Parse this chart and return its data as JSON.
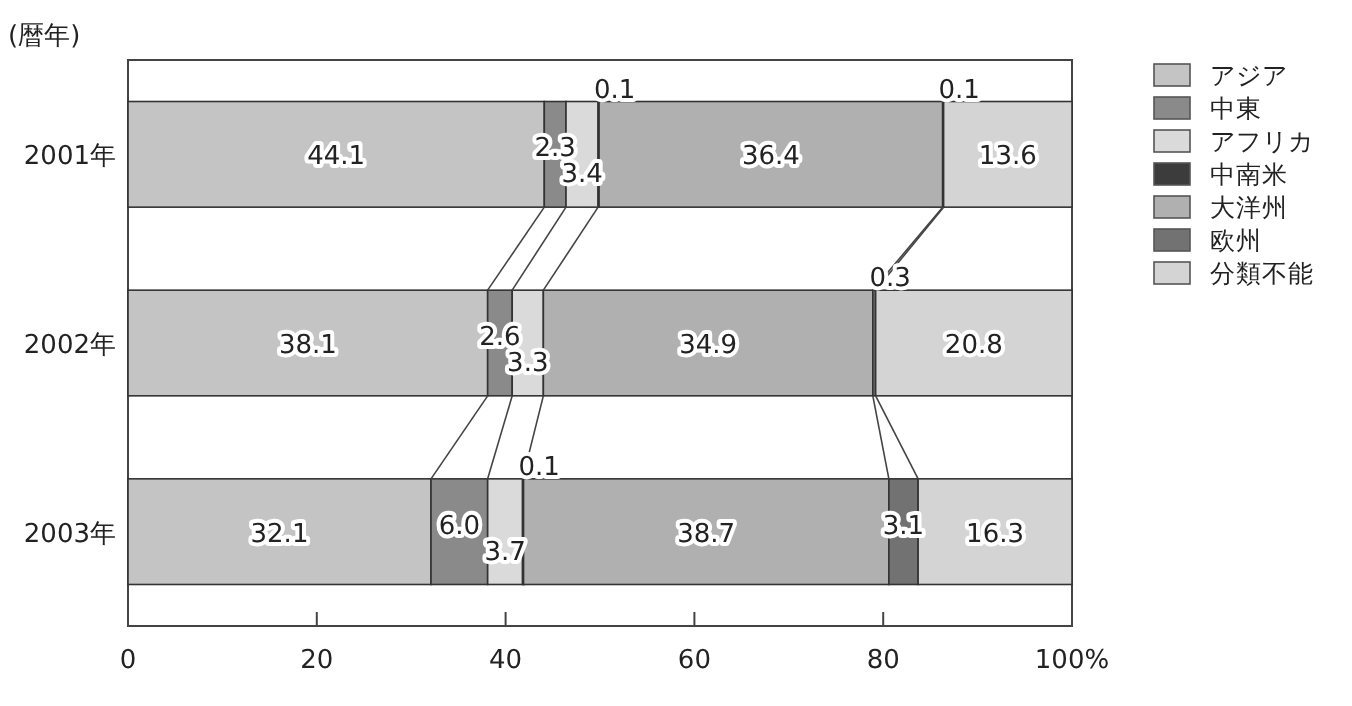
{
  "chart_data": {
    "type": "bar",
    "orientation": "horizontal",
    "stacked": true,
    "ylabel": "(暦年)",
    "categories": [
      "2001年",
      "2002年",
      "2003年"
    ],
    "xlim": [
      0,
      100
    ],
    "xticks": [
      0,
      20,
      40,
      60,
      80,
      {
        "value": 100,
        "label": "100%"
      }
    ],
    "grid": false,
    "legend": "right",
    "series": [
      {
        "name": "アジア",
        "color": "#c4c4c4",
        "values": [
          44.1,
          38.1,
          32.1
        ],
        "value_labels": [
          "44.1",
          "38.1",
          "32.1"
        ]
      },
      {
        "name": "中東",
        "color": "#8a8a8a",
        "values": [
          2.3,
          2.6,
          6.0
        ],
        "value_labels": [
          "2.3",
          "2.6",
          "6.0"
        ]
      },
      {
        "name": "アフリカ",
        "color": "#dadada",
        "values": [
          3.4,
          3.3,
          3.7
        ],
        "value_labels": [
          "3.4",
          "3.3",
          "3.7"
        ]
      },
      {
        "name": "中南米",
        "color": "#3c3c3c",
        "values": [
          0.1,
          null,
          0.1
        ],
        "value_labels": [
          "0.1",
          null,
          "0.1"
        ]
      },
      {
        "name": "大洋州",
        "color": "#b0b0b0",
        "values": [
          36.4,
          34.9,
          38.7
        ],
        "value_labels": [
          "36.4",
          "34.9",
          "38.7"
        ]
      },
      {
        "name": "欧州",
        "color": "#727272",
        "values": [
          0.1,
          0.3,
          3.1
        ],
        "value_labels": [
          "0.1",
          "0.3",
          "3.1"
        ]
      },
      {
        "name": "分類不能",
        "color": "#d4d4d4",
        "values": [
          13.6,
          20.8,
          16.3
        ],
        "value_labels": [
          "13.6",
          "20.8",
          "16.3"
        ]
      }
    ]
  }
}
